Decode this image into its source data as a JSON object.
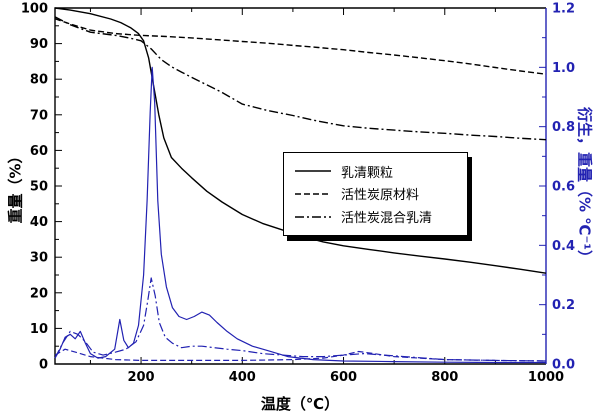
{
  "chart_data": {
    "type": "line",
    "xlabel": "温度（℃）",
    "ylabel_left": "重量（%）",
    "ylabel_right": "衍生，重量（% ℃⁻¹）",
    "xlim": [
      30,
      1000
    ],
    "ylim_left": [
      0,
      100
    ],
    "ylim_right": [
      0,
      1.2
    ],
    "x_ticks": [
      200,
      400,
      600,
      800,
      1000
    ],
    "x_minor_ticks": [
      100,
      300,
      500,
      700,
      900
    ],
    "y_ticks_left": [
      0,
      10,
      20,
      30,
      40,
      50,
      60,
      70,
      80,
      90,
      100
    ],
    "y_minor_ticks_left": [
      5,
      15,
      25,
      35,
      45,
      55,
      65,
      75,
      85,
      95
    ],
    "y_ticks_right": [
      0.0,
      0.2,
      0.4,
      0.6,
      0.8,
      1.0,
      1.2
    ],
    "y_minor_ticks_right": [
      0.1,
      0.3,
      0.5,
      0.7,
      0.9,
      1.1
    ],
    "grid": false,
    "legend_position": "center",
    "colors": {
      "weight": "#000000",
      "derivative": "#2222b2"
    },
    "series": [
      {
        "id": "whey-tga",
        "name": "乳清颗粒",
        "axis": "left",
        "color": "#000000",
        "width": 1.4,
        "x": [
          30,
          60,
          100,
          140,
          160,
          180,
          195,
          205,
          215,
          225,
          235,
          245,
          260,
          280,
          300,
          330,
          360,
          400,
          440,
          480,
          520,
          560,
          600,
          650,
          700,
          750,
          800,
          850,
          900,
          950,
          1000
        ],
        "y": [
          100,
          99.4,
          98.4,
          96.9,
          95.9,
          94.4,
          92.8,
          90.8,
          86,
          78,
          70,
          63.5,
          58,
          55,
          52.3,
          48.5,
          45.5,
          42,
          39.5,
          37.6,
          35.8,
          34.3,
          33.2,
          32.2,
          31.2,
          30.3,
          29.5,
          28.6,
          27.6,
          26.6,
          25.5
        ]
      },
      {
        "id": "ac-raw-tga",
        "name": "活性炭原材料",
        "axis": "left",
        "color": "#000000",
        "width": 1.4,
        "dash": "6,3",
        "x": [
          30,
          60,
          100,
          150,
          200,
          250,
          300,
          350,
          400,
          450,
          500,
          550,
          600,
          650,
          700,
          750,
          800,
          850,
          900,
          950,
          1000
        ],
        "y": [
          97,
          95.5,
          93.8,
          92.8,
          92.3,
          92,
          91.6,
          91.1,
          90.6,
          90.1,
          89.5,
          88.9,
          88.3,
          87.5,
          86.8,
          86,
          85.2,
          84.3,
          83.3,
          82.3,
          81.4
        ]
      },
      {
        "id": "ac-whey-tga",
        "name": "活性炭混合乳清",
        "axis": "left",
        "color": "#000000",
        "width": 1.4,
        "dash": "9,3,2,3",
        "x": [
          30,
          60,
          100,
          150,
          180,
          200,
          220,
          240,
          260,
          280,
          300,
          330,
          360,
          400,
          450,
          500,
          550,
          600,
          650,
          700,
          750,
          800,
          850,
          900,
          950,
          1000
        ],
        "y": [
          97.5,
          95.3,
          93.2,
          92.3,
          91.5,
          90.8,
          88.5,
          85.5,
          83.5,
          82,
          80.5,
          78.4,
          76.3,
          73,
          71.2,
          69.8,
          68.2,
          66.9,
          66.2,
          65.7,
          65.2,
          64.8,
          64.3,
          63.9,
          63.4,
          63
        ]
      },
      {
        "id": "whey-dtg",
        "name": "乳清颗粒 DTG",
        "axis": "right",
        "color": "#2222b2",
        "width": 1.2,
        "x": [
          30,
          40,
          50,
          60,
          70,
          80,
          90,
          100,
          115,
          130,
          148,
          158,
          166,
          175,
          185,
          195,
          205,
          212,
          218,
          222,
          227,
          233,
          240,
          250,
          262,
          275,
          290,
          305,
          320,
          335,
          350,
          370,
          390,
          420,
          450,
          490,
          540,
          600,
          700,
          800,
          900,
          1000
        ],
        "y": [
          0.02,
          0.05,
          0.09,
          0.1,
          0.085,
          0.11,
          0.07,
          0.035,
          0.02,
          0.025,
          0.05,
          0.15,
          0.08,
          0.055,
          0.07,
          0.13,
          0.3,
          0.55,
          0.85,
          1.0,
          0.88,
          0.55,
          0.37,
          0.26,
          0.19,
          0.16,
          0.15,
          0.16,
          0.175,
          0.165,
          0.14,
          0.11,
          0.085,
          0.06,
          0.045,
          0.025,
          0.015,
          0.01,
          0.008,
          0.006,
          0.005,
          0.005
        ]
      },
      {
        "id": "ac-raw-dtg",
        "name": "活性炭原材料 DTG",
        "axis": "right",
        "color": "#2222b2",
        "width": 1.2,
        "dash": "6,3",
        "x": [
          30,
          50,
          70,
          100,
          150,
          200,
          300,
          400,
          500,
          560,
          600,
          630,
          660,
          700,
          750,
          800,
          900,
          1000
        ],
        "y": [
          0.03,
          0.05,
          0.04,
          0.025,
          0.015,
          0.012,
          0.012,
          0.012,
          0.015,
          0.02,
          0.03,
          0.042,
          0.035,
          0.025,
          0.02,
          0.015,
          0.012,
          0.01
        ]
      },
      {
        "id": "ac-whey-dtg",
        "name": "活性炭混合乳清 DTG",
        "axis": "right",
        "color": "#2222b2",
        "width": 1.2,
        "dash": "9,3,2,3",
        "x": [
          30,
          45,
          60,
          75,
          90,
          105,
          125,
          150,
          170,
          190,
          205,
          213,
          220,
          228,
          236,
          248,
          262,
          280,
          300,
          320,
          345,
          370,
          400,
          440,
          480,
          520,
          560,
          600,
          640,
          680,
          720,
          760,
          800,
          900,
          1000
        ],
        "y": [
          0.02,
          0.07,
          0.11,
          0.1,
          0.075,
          0.04,
          0.03,
          0.04,
          0.05,
          0.075,
          0.13,
          0.21,
          0.29,
          0.23,
          0.14,
          0.09,
          0.07,
          0.055,
          0.06,
          0.06,
          0.055,
          0.05,
          0.045,
          0.035,
          0.03,
          0.025,
          0.025,
          0.03,
          0.035,
          0.03,
          0.025,
          0.02,
          0.015,
          0.012,
          0.01
        ]
      }
    ]
  }
}
